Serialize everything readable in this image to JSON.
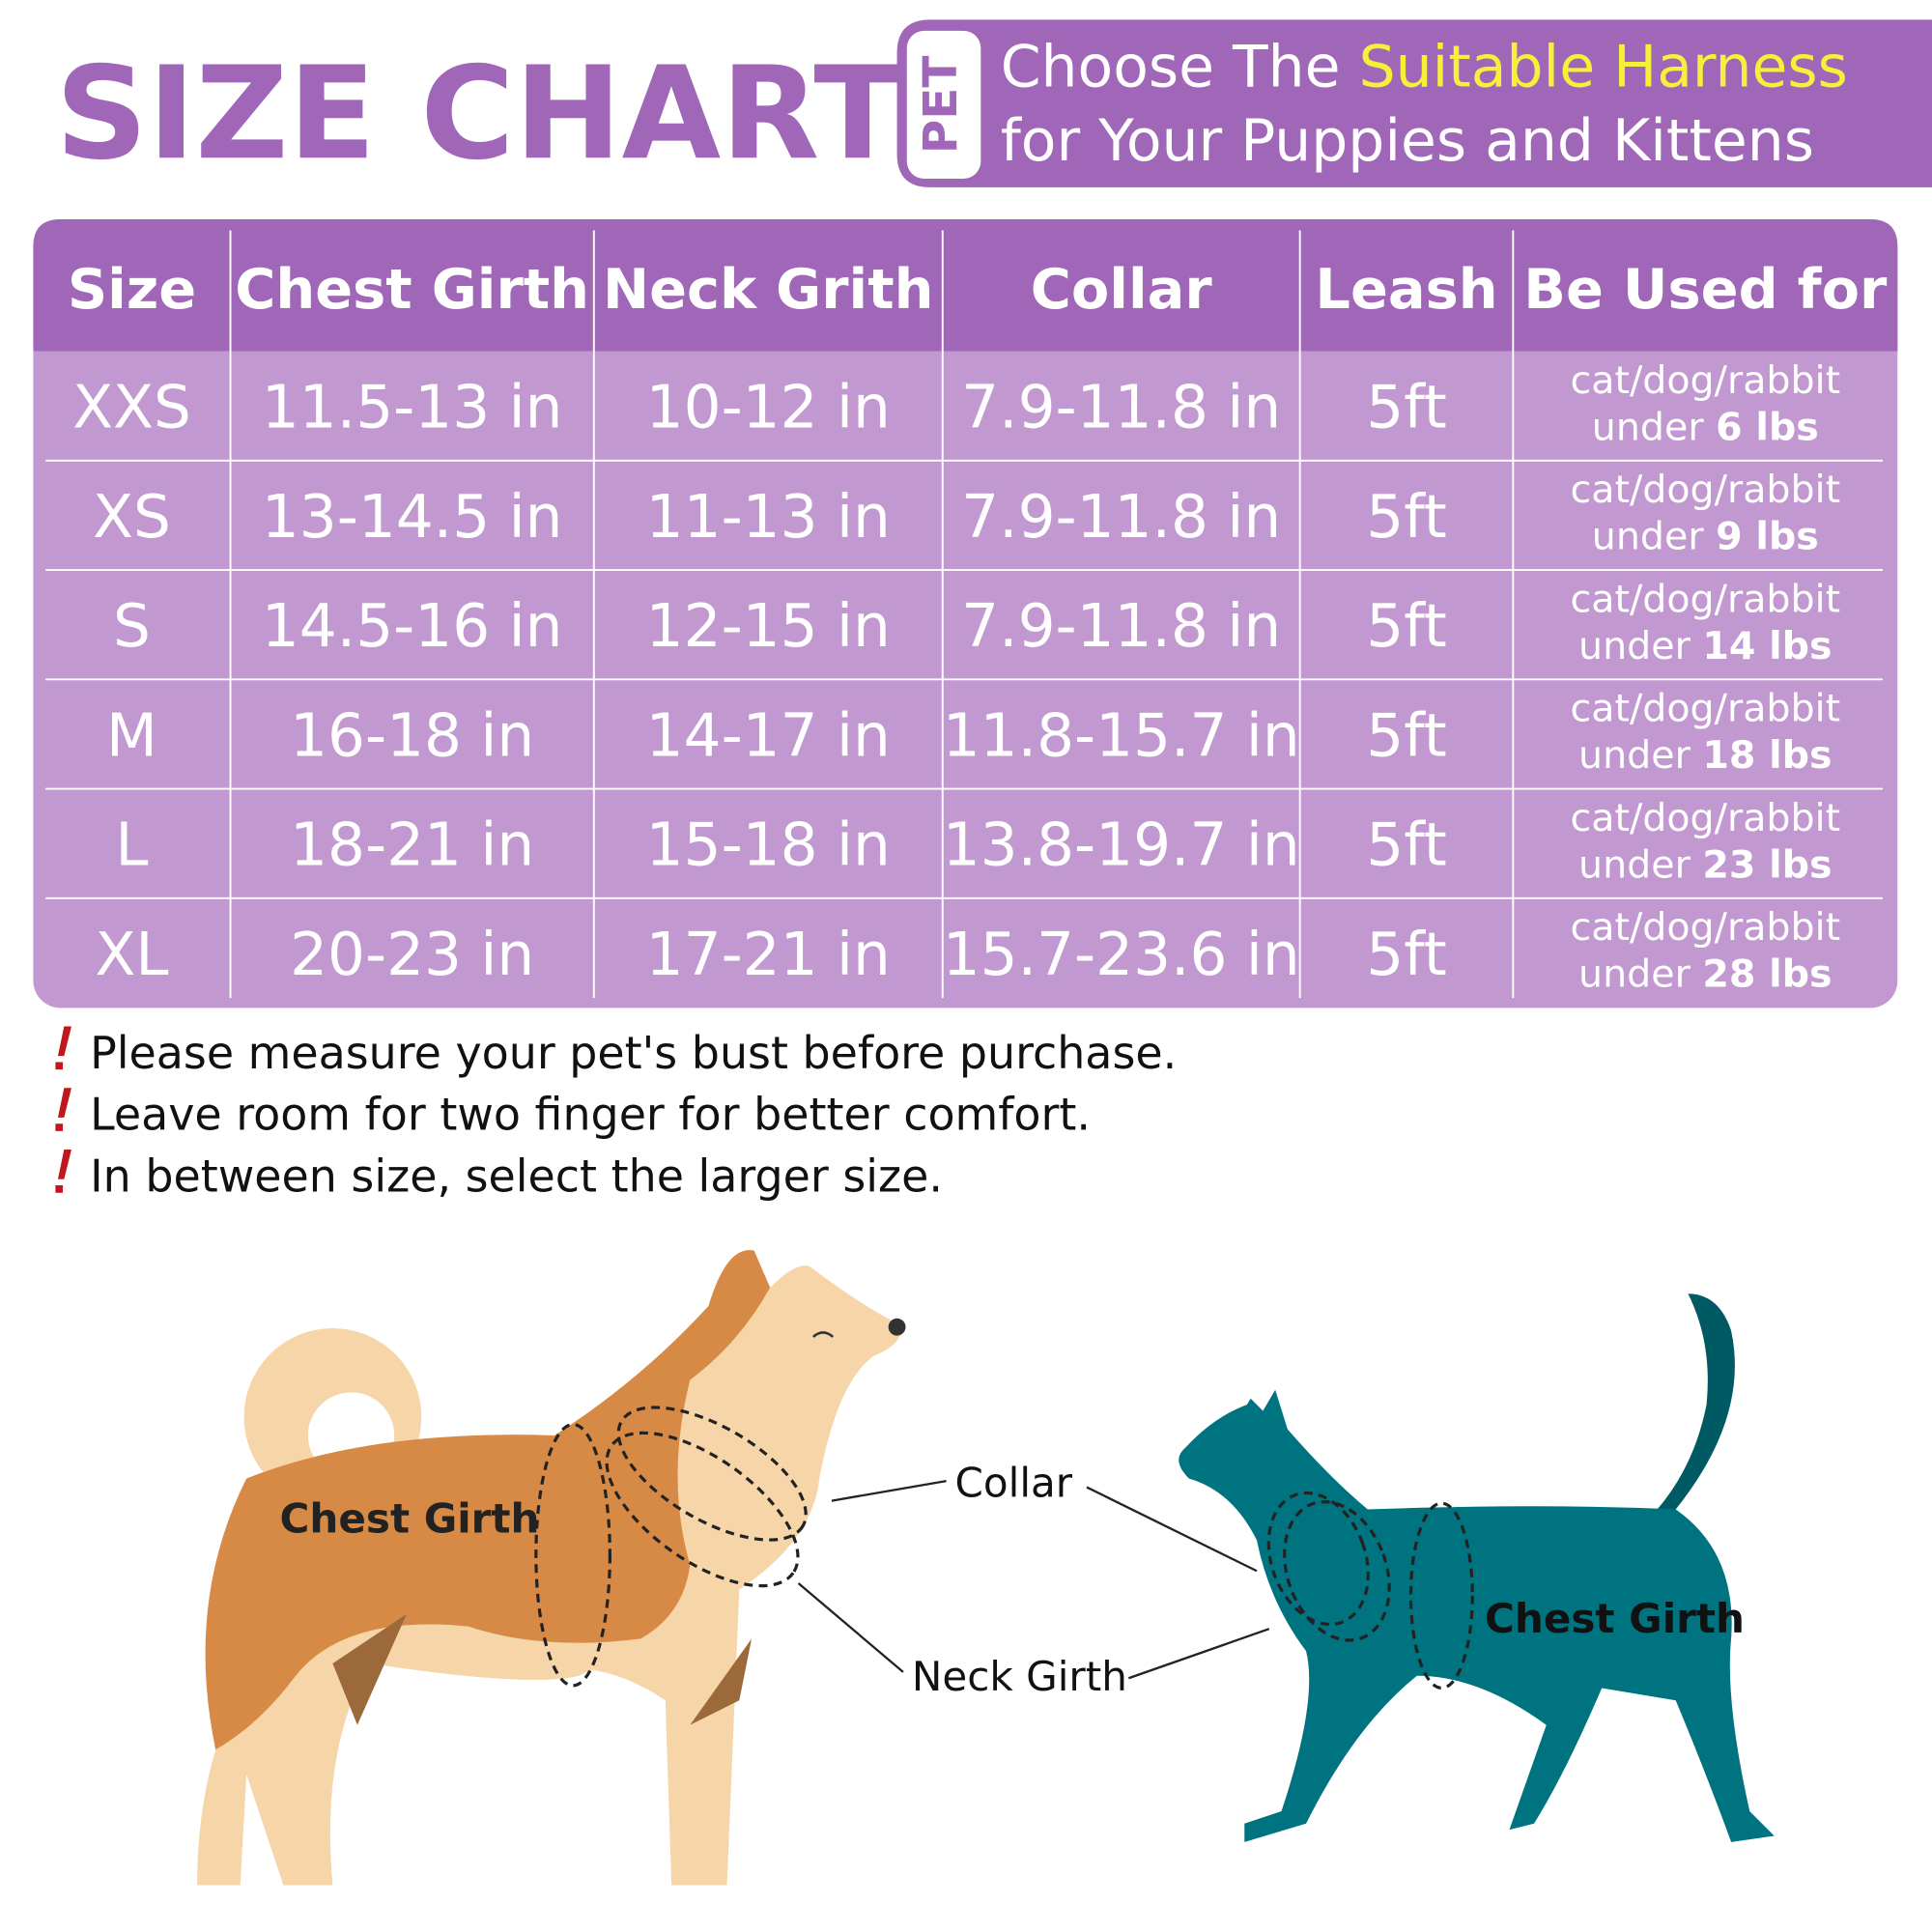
{
  "header": {
    "title": "SIZE CHART",
    "badge": "PET",
    "tagline": {
      "line1_plain": "Choose The ",
      "line1_highlight": "Suitable Harness",
      "line2": "for Your Puppies and Kittens"
    }
  },
  "table": {
    "columns": [
      "Size",
      "Chest Girth",
      "Neck Grith",
      "Collar",
      "Leash",
      "Be Used for"
    ],
    "rows": [
      [
        "XXS",
        "11.5-13 in",
        "10-12 in",
        "7.9-11.8 in",
        "5ft",
        {
          "species": "cat/dog/rabbit",
          "prefix": "under",
          "weight": "6 lbs"
        }
      ],
      [
        "XS",
        "13-14.5 in",
        "11-13 in",
        "7.9-11.8 in",
        "5ft",
        {
          "species": "cat/dog/rabbit",
          "prefix": "under",
          "weight": "9 lbs"
        }
      ],
      [
        "S",
        "14.5-16 in",
        "12-15 in",
        "7.9-11.8 in",
        "5ft",
        {
          "species": "cat/dog/rabbit",
          "prefix": "under",
          "weight": "14 lbs"
        }
      ],
      [
        "M",
        "16-18 in",
        "14-17 in",
        "11.8-15.7 in",
        "5ft",
        {
          "species": "cat/dog/rabbit",
          "prefix": "under",
          "weight": "18 lbs"
        }
      ],
      [
        "L",
        "18-21 in",
        "15-18 in",
        "13.8-19.7 in",
        "5ft",
        {
          "species": "cat/dog/rabbit",
          "prefix": "under",
          "weight": "23 lbs"
        }
      ],
      [
        "XL",
        "20-23 in",
        "17-21 in",
        "15.7-23.6 in",
        "5ft",
        {
          "species": "cat/dog/rabbit",
          "prefix": "under",
          "weight": "28 lbs"
        }
      ]
    ]
  },
  "notes": [
    "Please measure your pet's bust before purchase.",
    "Leave room for two finger for better comfort.",
    "In between size, select the larger size."
  ],
  "diagram": {
    "dog_chest": "Chest Girth",
    "collar": "Collar",
    "neck": "Neck Girth",
    "cat_chest": "Chest Girth"
  }
}
